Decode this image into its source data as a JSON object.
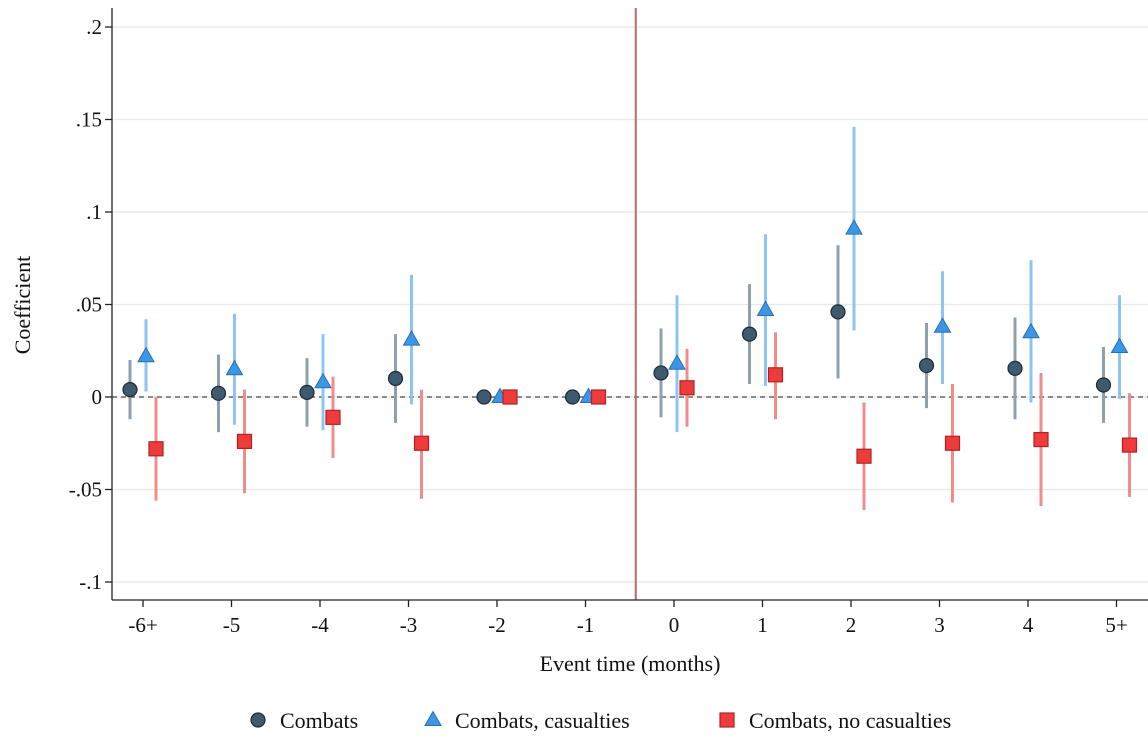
{
  "chart_data": {
    "type": "scatter",
    "xlabel": "Event time (months)",
    "ylabel": "Coefficient",
    "categories": [
      "-6+",
      "-5",
      "-4",
      "-3",
      "-2",
      "-1",
      "0",
      "1",
      "2",
      "3",
      "4",
      "5+"
    ],
    "ylim": [
      -0.1,
      0.2
    ],
    "yticks": [
      -0.1,
      -0.05,
      0,
      0.05,
      0.1,
      0.15,
      0.2
    ],
    "ytick_labels": [
      "-.1",
      "-.05",
      "0",
      ".05",
      ".1",
      ".15",
      ".2"
    ],
    "grid": true,
    "reference_line": {
      "y": 0,
      "style": "dashed"
    },
    "event_line": {
      "x_between": [
        "-1",
        "0"
      ]
    },
    "legend_position": "bottom",
    "series": [
      {
        "name": "Combats",
        "marker": "circle",
        "color": "#3d5a6e",
        "ci_color": "#8fa0ad",
        "values": [
          0.004,
          0.002,
          0.0025,
          0.01,
          0.0,
          0.0,
          0.013,
          0.034,
          0.046,
          0.017,
          0.0155,
          0.0065
        ],
        "ci_low": [
          -0.012,
          -0.019,
          -0.016,
          -0.014,
          null,
          null,
          -0.011,
          0.007,
          0.01,
          -0.006,
          -0.012,
          -0.014
        ],
        "ci_high": [
          0.02,
          0.023,
          0.021,
          0.034,
          null,
          null,
          0.037,
          0.061,
          0.082,
          0.04,
          0.043,
          0.027
        ]
      },
      {
        "name": "Combats, casualties",
        "marker": "triangle",
        "color": "#3a96e6",
        "ci_color": "#8ec4f2",
        "values": [
          0.022,
          0.015,
          0.008,
          0.031,
          0.0,
          0.0,
          0.018,
          0.047,
          0.091,
          0.038,
          0.035,
          0.027
        ],
        "ci_low": [
          0.003,
          -0.015,
          -0.018,
          -0.004,
          null,
          null,
          -0.019,
          0.006,
          0.036,
          0.007,
          -0.003,
          -0.001
        ],
        "ci_high": [
          0.042,
          0.045,
          0.034,
          0.066,
          null,
          null,
          0.055,
          0.088,
          0.146,
          0.068,
          0.074,
          0.055
        ]
      },
      {
        "name": "Combats, no casualties",
        "marker": "square",
        "color": "#ee3c3c",
        "ci_color": "#f08c8c",
        "values": [
          -0.028,
          -0.024,
          -0.011,
          -0.025,
          0.0,
          0.0,
          0.005,
          0.012,
          -0.032,
          -0.025,
          -0.023,
          -0.026
        ],
        "ci_low": [
          -0.056,
          -0.052,
          -0.033,
          -0.055,
          null,
          null,
          -0.016,
          -0.012,
          -0.061,
          -0.057,
          -0.059,
          -0.054
        ],
        "ci_high": [
          0.0,
          0.004,
          0.011,
          0.004,
          null,
          null,
          0.026,
          0.035,
          -0.003,
          0.007,
          0.013,
          0.002
        ]
      }
    ]
  }
}
